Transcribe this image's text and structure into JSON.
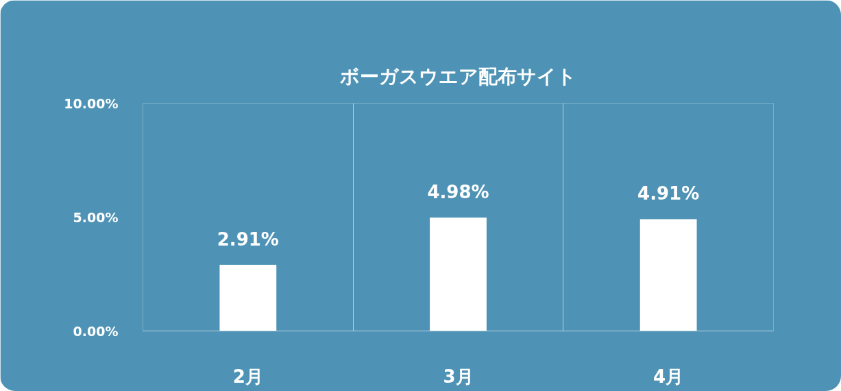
{
  "chart_data": {
    "type": "bar",
    "title": "ボーガスウエア配布サイト",
    "categories": [
      "2月",
      "3月",
      "4月"
    ],
    "values": [
      2.91,
      4.98,
      4.91
    ],
    "value_labels": [
      "2.91%",
      "4.98%",
      "4.91%"
    ],
    "color": "#ffffff",
    "ylim": [
      0,
      10
    ],
    "yticks": [
      {
        "value": 0,
        "label": "0.00%"
      },
      {
        "value": 5,
        "label": "5.00%"
      },
      {
        "value": 10,
        "label": "10.00%"
      }
    ],
    "grid": "x"
  }
}
